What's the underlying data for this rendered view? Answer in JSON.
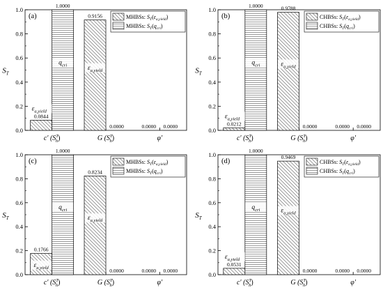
{
  "chart_data": [
    {
      "type": "bar",
      "panel_label": "(a)",
      "ylabel": "S",
      "ylabel_sub": "T",
      "ylim": [
        0,
        1
      ],
      "yticks": [
        "0.0",
        "0.2",
        "0.4",
        "0.6",
        "0.8",
        "1.0"
      ],
      "categories": [
        {
          "main": "c′ (S",
          "sub": "h",
          "sup": "T",
          "end": ")"
        },
        {
          "main": "G (S",
          "sub": "h",
          "sup": "T",
          "end": ")"
        },
        {
          "main": "φ′",
          "sub": "",
          "sup": "",
          "end": ""
        }
      ],
      "legend": [
        {
          "prefix": "MHBSs: ",
          "S": "S",
          "sub": "T",
          "arg": "ε",
          "argsub": "a,yield"
        },
        {
          "prefix": "MHBSs: ",
          "S": "S",
          "sub": "T",
          "arg": "q",
          "argsub": "cri"
        }
      ],
      "series": [
        {
          "name": "MHBSs: ST(εa,yield)",
          "pattern": "diag",
          "values": [
            0.0844,
            0.9156,
            0.0
          ],
          "labels": [
            "0.0844",
            "0.9156",
            "0.0000"
          ]
        },
        {
          "name": "MHBSs: ST(qcri)",
          "pattern": "horiz",
          "values": [
            1.0,
            0.0,
            0.0
          ],
          "labels": [
            "1.0000",
            "0.0000",
            "0.0000"
          ]
        }
      ],
      "annotations": [
        {
          "series": 0,
          "cat": 0,
          "text": "ε",
          "sub": "a,yield",
          "placement": "above"
        },
        {
          "series": 1,
          "cat": 0,
          "text": "q",
          "sub": "cri",
          "placement": "inside"
        },
        {
          "series": 0,
          "cat": 1,
          "text": "ε",
          "sub": "a,yield",
          "placement": "inside"
        }
      ]
    },
    {
      "type": "bar",
      "panel_label": "(b)",
      "ylabel": "S",
      "ylabel_sub": "T",
      "ylim": [
        0,
        1
      ],
      "yticks": [
        "0.0",
        "0.2",
        "0.4",
        "0.6",
        "0.8",
        "1.0"
      ],
      "categories": [
        {
          "main": "c′ (S",
          "sub": "h",
          "sup": "T",
          "end": ")"
        },
        {
          "main": "G (S",
          "sub": "h",
          "sup": "T",
          "end": ")"
        },
        {
          "main": "φ′",
          "sub": "",
          "sup": "",
          "end": ""
        }
      ],
      "legend": [
        {
          "prefix": "CHBSs: ",
          "S": "S",
          "sub": "T",
          "arg": "ε",
          "argsub": "a,yield"
        },
        {
          "prefix": "CHBSs: ",
          "S": "S",
          "sub": "T",
          "arg": "q",
          "argsub": "cri"
        }
      ],
      "series": [
        {
          "name": "CHBSs: ST(εa,yield)",
          "pattern": "diag",
          "values": [
            0.0212,
            0.9788,
            0.0
          ],
          "labels": [
            "0.0212",
            "0.9788",
            "0.0000"
          ]
        },
        {
          "name": "CHBSs: ST(qcri)",
          "pattern": "horiz",
          "values": [
            1.0,
            0.0,
            0.0
          ],
          "labels": [
            "1.0000",
            "0.0000",
            "0.0000"
          ]
        }
      ],
      "annotations": [
        {
          "series": 0,
          "cat": 0,
          "text": "ε",
          "sub": "a,yield",
          "placement": "above"
        },
        {
          "series": 1,
          "cat": 0,
          "text": "q",
          "sub": "cri",
          "placement": "inside"
        },
        {
          "series": 0,
          "cat": 1,
          "text": "ε",
          "sub": "a,yield",
          "placement": "inside"
        }
      ]
    },
    {
      "type": "bar",
      "panel_label": "(c)",
      "ylabel": "S",
      "ylabel_sub": "T",
      "ylim": [
        0,
        1
      ],
      "yticks": [
        "0.0",
        "0.2",
        "0.4",
        "0.6",
        "0.8",
        "1.0"
      ],
      "categories": [
        {
          "main": "c′ (S",
          "sub": "h",
          "sup": "T",
          "end": ")"
        },
        {
          "main": "G (S",
          "sub": "h",
          "sup": "T",
          "end": ")"
        },
        {
          "main": "φ′",
          "sub": "",
          "sup": "",
          "end": ""
        }
      ],
      "legend": [
        {
          "prefix": "MHBSs: ",
          "S": "S",
          "sub": "T",
          "arg": "ε",
          "argsub": "a,yield"
        },
        {
          "prefix": "MHBSs: ",
          "S": "S",
          "sub": "T",
          "arg": "q",
          "argsub": "cri"
        }
      ],
      "series": [
        {
          "name": "MHBSs: ST(εa,yield)",
          "pattern": "diag",
          "values": [
            0.1766,
            0.8234,
            0.0
          ],
          "labels": [
            "0.1766",
            "0.8234",
            "0.0000"
          ]
        },
        {
          "name": "MHBSs: ST(qcri)",
          "pattern": "horiz",
          "values": [
            1.0,
            0.0,
            0.0
          ],
          "labels": [
            "1.0000",
            "0.0000",
            "0.0000"
          ]
        }
      ],
      "annotations": [
        {
          "series": 0,
          "cat": 0,
          "text": "ε",
          "sub": "a,yield",
          "placement": "inside"
        },
        {
          "series": 1,
          "cat": 0,
          "text": "q",
          "sub": "cri",
          "placement": "inside"
        },
        {
          "series": 0,
          "cat": 1,
          "text": "ε",
          "sub": "a,yield",
          "placement": "inside"
        }
      ]
    },
    {
      "type": "bar",
      "panel_label": "(d)",
      "ylabel": "S",
      "ylabel_sub": "T",
      "ylim": [
        0,
        1
      ],
      "yticks": [
        "0.0",
        "0.2",
        "0.4",
        "0.6",
        "0.8",
        "1.0"
      ],
      "categories": [
        {
          "main": "c′ (S",
          "sub": "h",
          "sup": "T",
          "end": ")"
        },
        {
          "main": "G (S",
          "sub": "h",
          "sup": "T",
          "end": ")"
        },
        {
          "main": "φ′",
          "sub": "",
          "sup": "",
          "end": ""
        }
      ],
      "legend": [
        {
          "prefix": "CHBSs: ",
          "S": "S",
          "sub": "T",
          "arg": "ε",
          "argsub": "a,yield"
        },
        {
          "prefix": "CHBSs: ",
          "S": "S",
          "sub": "T",
          "arg": "q",
          "argsub": "cri"
        }
      ],
      "series": [
        {
          "name": "CHBSs: ST(εa,yield)",
          "pattern": "diag",
          "values": [
            0.0531,
            0.9469,
            0.0
          ],
          "labels": [
            "0.0531",
            "0.9469",
            "0.0000"
          ]
        },
        {
          "name": "CHBSs: ST(qcri)",
          "pattern": "horiz",
          "values": [
            1.0,
            0.0,
            0.0
          ],
          "labels": [
            "1.0000",
            "0.0000",
            "0.0000"
          ]
        }
      ],
      "annotations": [
        {
          "series": 0,
          "cat": 0,
          "text": "ε",
          "sub": "a,yield",
          "placement": "above"
        },
        {
          "series": 1,
          "cat": 0,
          "text": "q",
          "sub": "cri",
          "placement": "inside"
        },
        {
          "series": 0,
          "cat": 1,
          "text": "ε",
          "sub": "a,yield",
          "placement": "inside"
        }
      ]
    }
  ]
}
